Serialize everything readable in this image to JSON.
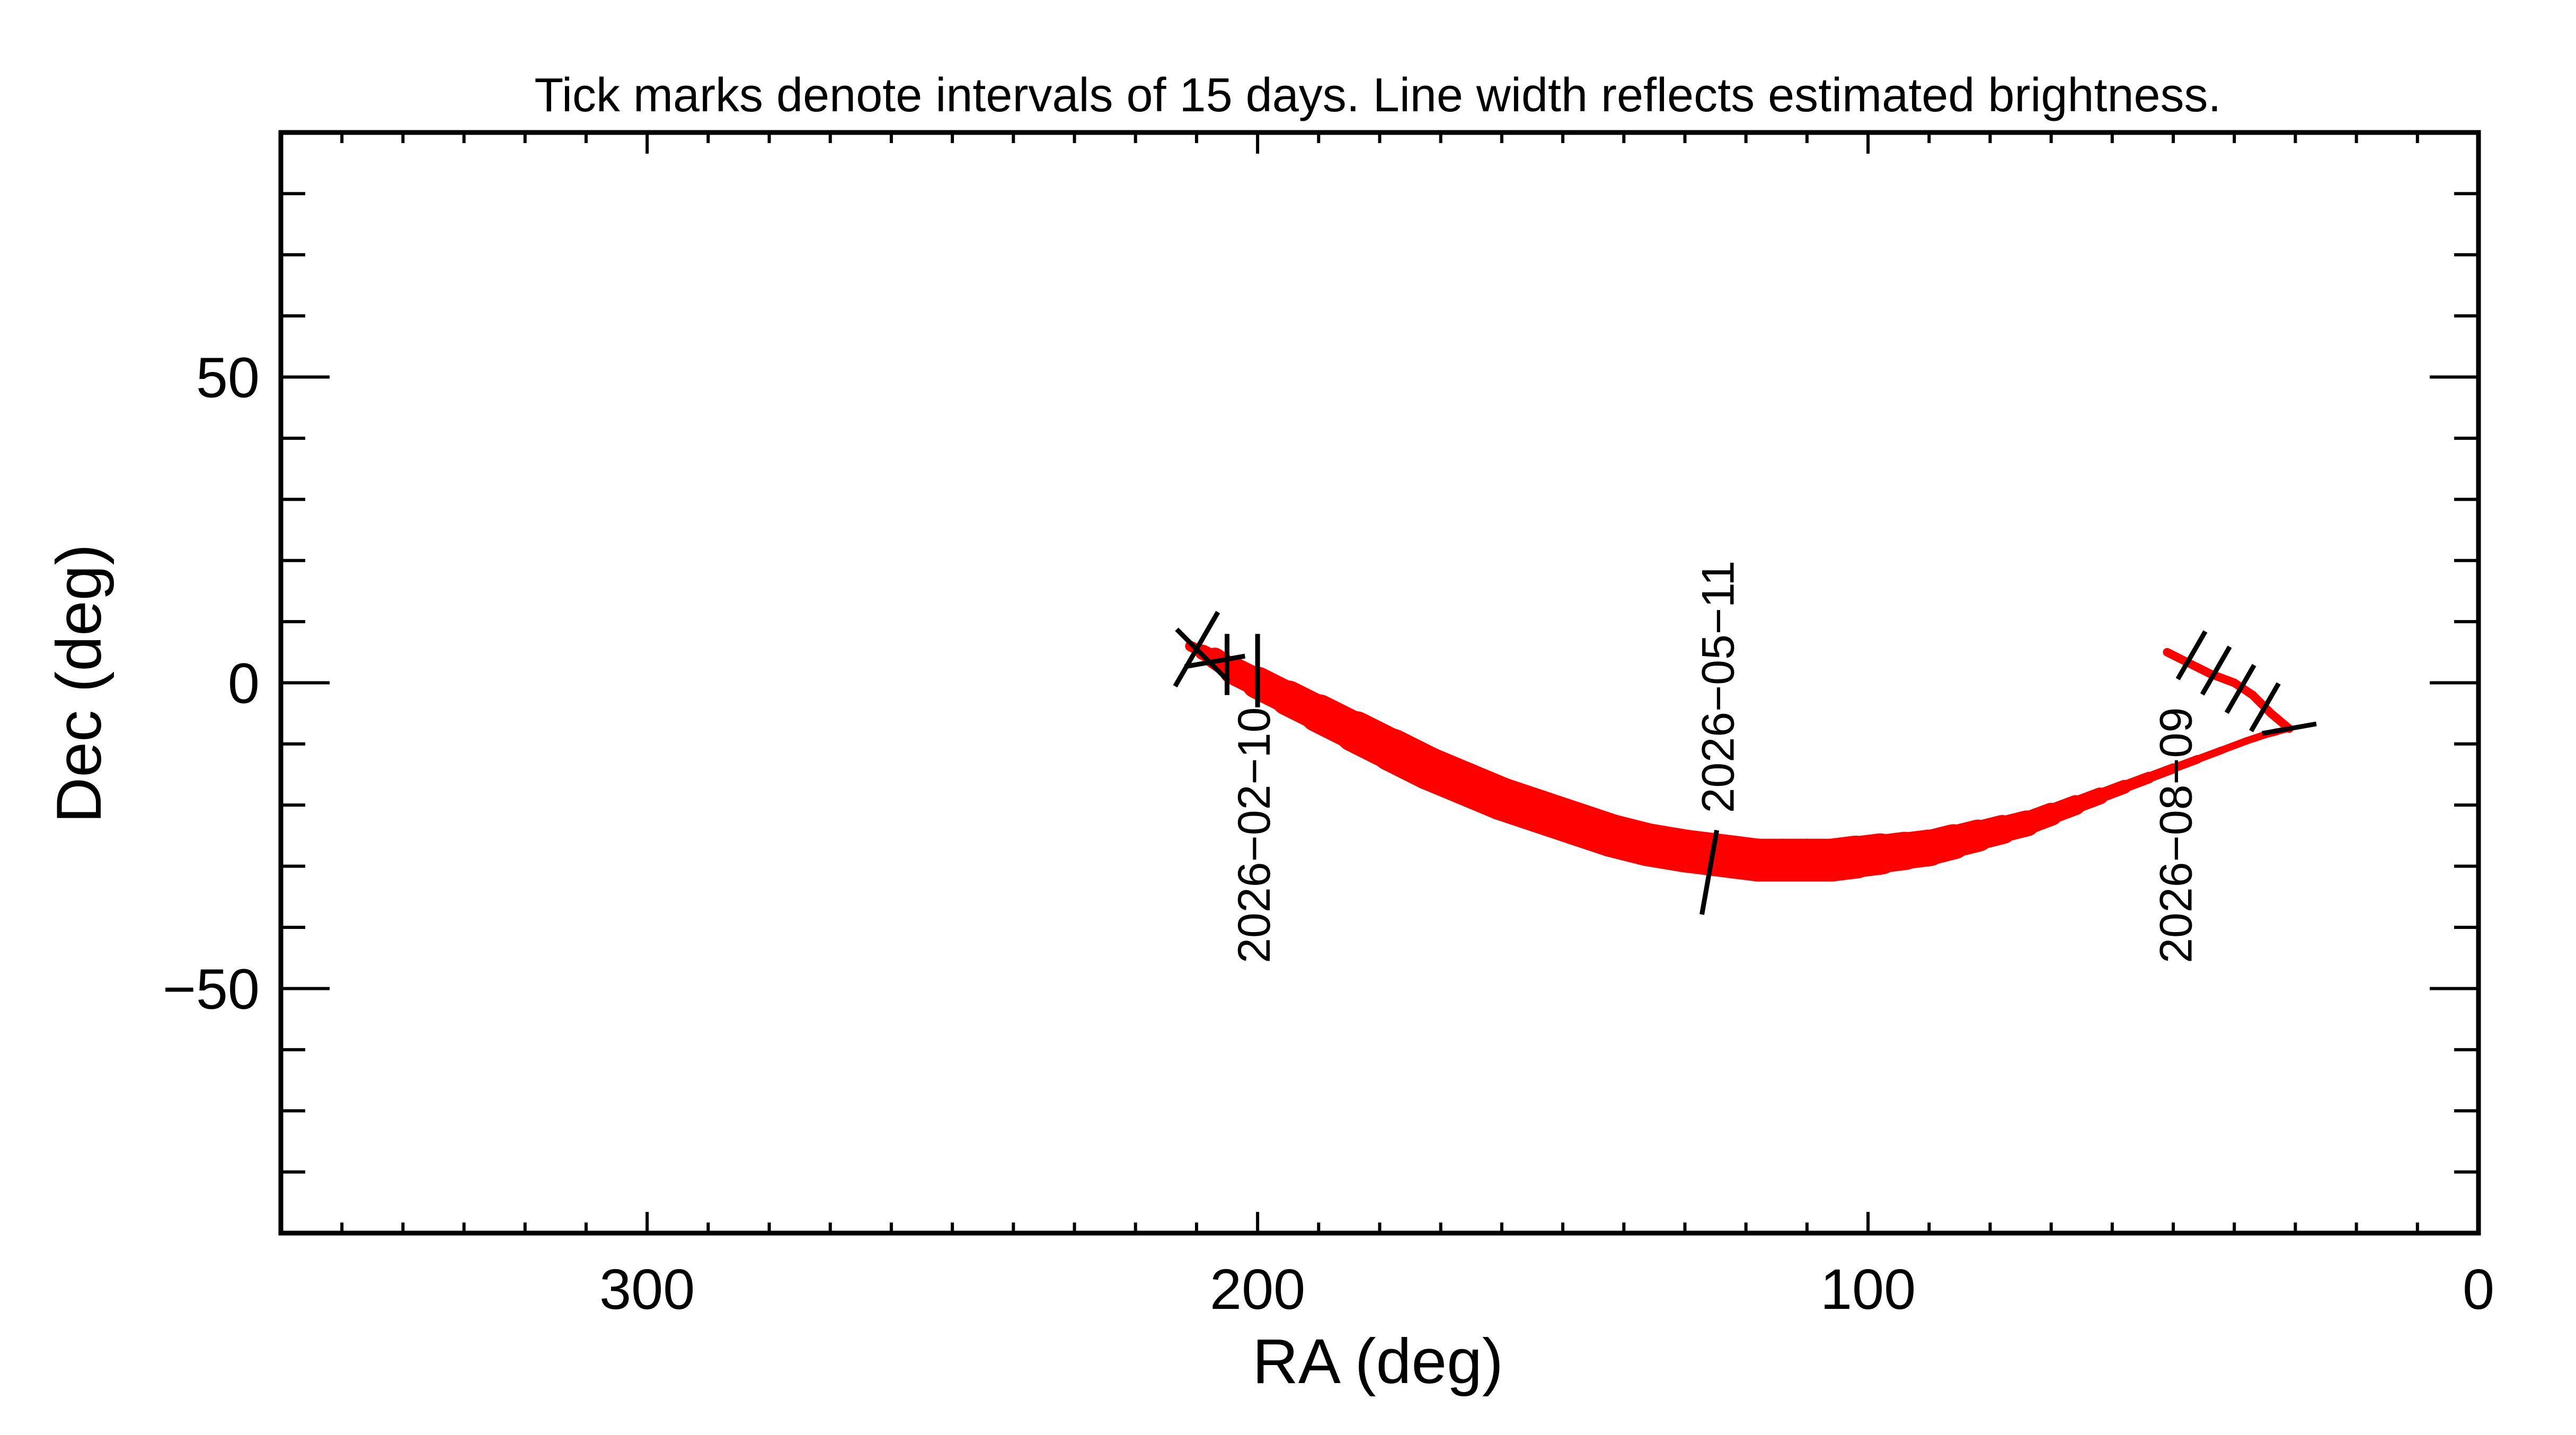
{
  "chart_data": {
    "type": "line",
    "title": "Tick marks denote intervals of 15 days.  Line width reflects estimated brightness.",
    "xlabel": "RA (deg)",
    "ylabel": "Dec (deg)",
    "xlim": [
      360,
      0
    ],
    "ylim": [
      -90,
      90
    ],
    "x_ticks": [
      300,
      200,
      100,
      0
    ],
    "y_ticks": [
      50,
      0,
      -50
    ],
    "x_tick_labels": [
      "300",
      "200",
      "100",
      "0"
    ],
    "y_tick_labels": [
      "50",
      "0",
      "−50"
    ],
    "x_minor_step": 10,
    "y_minor_step": 10,
    "grid": false,
    "colors": {
      "track": "#ff0000",
      "ink": "#000000"
    },
    "series": [
      {
        "x": [
          211,
          209,
          207,
          204,
          200,
          195,
          190,
          184,
          178,
          172,
          166,
          160,
          154,
          148,
          142,
          136,
          130,
          126,
          122,
          118,
          114,
          110,
          106,
          102,
          98,
          94,
          90,
          86,
          82,
          78,
          74,
          70,
          66,
          62,
          58,
          54,
          50,
          46,
          42,
          38,
          35,
          33,
          31
        ],
        "y": [
          6,
          5,
          4,
          2,
          0,
          -2.5,
          -5,
          -8,
          -11,
          -14,
          -16.5,
          -19,
          -21,
          -23,
          -25,
          -26.5,
          -27.5,
          -28,
          -28.5,
          -29,
          -29,
          -29,
          -29,
          -28.5,
          -28,
          -27.5,
          -27,
          -26,
          -25,
          -24,
          -23,
          -21.5,
          -20,
          -18.5,
          -17,
          -15.5,
          -14,
          -12.5,
          -11,
          -9.5,
          -8.5,
          -8,
          -7.5
        ],
        "width_deg": [
          1.5,
          2,
          3,
          4,
          5,
          5.5,
          6,
          6.5,
          7,
          7,
          7,
          7,
          7,
          7,
          7,
          7,
          7,
          7,
          7,
          7,
          7,
          7,
          7,
          7,
          6.5,
          6,
          6,
          5.5,
          5,
          4.5,
          4,
          3.5,
          3,
          2.5,
          2,
          1.8,
          1.5,
          1.3,
          1.2,
          1.2,
          1.2,
          1.1,
          1
        ],
        "return_x": [
          31,
          34,
          37,
          40,
          44,
          48,
          51
        ],
        "return_y": [
          -7.5,
          -5,
          -2,
          0,
          1.5,
          3.5,
          5
        ]
      }
    ],
    "ticks_15_days": [
      {
        "x": 210,
        "y": 5.5,
        "angle": 60,
        "len": 14
      },
      {
        "x": 209,
        "y": 4.5,
        "angle": -45,
        "len": 12
      },
      {
        "x": 207,
        "y": 3.5,
        "angle": 10,
        "len": 10
      },
      {
        "x": 205,
        "y": 3,
        "angle": 90,
        "len": 10
      },
      {
        "x": 200,
        "y": 2,
        "angle": 90,
        "len": 12
      },
      {
        "x": 126,
        "y": -31,
        "angle": 80,
        "len": 14
      },
      {
        "x": 47,
        "y": 4.5,
        "angle": 60,
        "len": 9
      },
      {
        "x": 43,
        "y": 2,
        "angle": 60,
        "len": 9
      },
      {
        "x": 39,
        "y": -1,
        "angle": 60,
        "len": 9
      },
      {
        "x": 35,
        "y": -4,
        "angle": 60,
        "len": 9
      },
      {
        "x": 31,
        "y": -7.5,
        "angle": 10,
        "len": 9
      }
    ],
    "annotations": [
      {
        "text": "2026−02−10",
        "x": 198,
        "y": -4
      },
      {
        "text": "2026−05−11",
        "x": 122,
        "y": 20
      },
      {
        "text": "2026−08−09",
        "x": 47,
        "y": -4
      }
    ]
  }
}
